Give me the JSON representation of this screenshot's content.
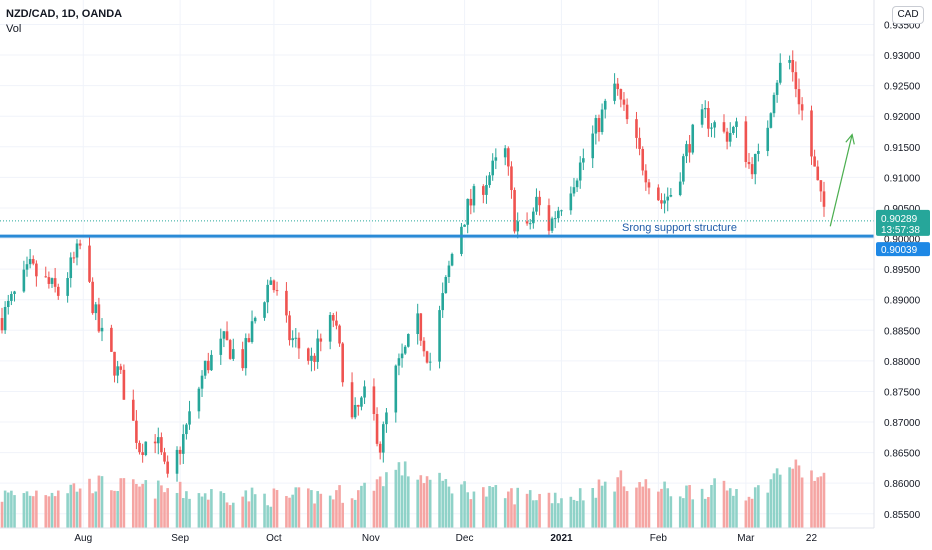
{
  "legend": {
    "symbol": "NZD/CAD, 1D, OANDA",
    "volume": "Vol"
  },
  "currency_badge": "CAD",
  "colors": {
    "up": "#26a69a",
    "down": "#ef5350",
    "vol_up": "#8fd2c8",
    "vol_down": "#f5a5a3",
    "support": "#2a8ad6",
    "arrow": "#4caf50",
    "price_tag": "#26a69a",
    "support_tag": "#1e88e5"
  },
  "chart_data": {
    "type": "candlestick",
    "title": "NZD/CAD, 1D, OANDA",
    "ylim": [
      0.853,
      0.939
    ],
    "y_ticks": [
      "0.93500",
      "0.93000",
      "0.92500",
      "0.92000",
      "0.91500",
      "0.91000",
      "0.90500",
      "0.90000",
      "0.89500",
      "0.89000",
      "0.88500",
      "0.88000",
      "0.87500",
      "0.87000",
      "0.86500",
      "0.86000",
      "0.85500"
    ],
    "x_ticks": [
      "Aug",
      "Sep",
      "Oct",
      "Nov",
      "Dec",
      "2021",
      "Feb",
      "Mar",
      "22"
    ],
    "x_tick_dates": [
      "2020-08-01",
      "2020-09-01",
      "2020-10-01",
      "2020-11-01",
      "2020-12-01",
      "2021-01-01",
      "2021-02-01",
      "2021-03-01",
      "2021-03-22"
    ],
    "date_range": [
      "2020-07-06",
      "2021-03-26"
    ],
    "last_price": {
      "value": "0.90289",
      "countdown": "13:57:38"
    },
    "support": {
      "value": 0.90039,
      "label": "0.90039"
    },
    "annotation": "Srong support structure",
    "close_path": [
      [
        "2020-07-06",
        0.887
      ],
      [
        "2020-07-15",
        0.895
      ],
      [
        "2020-07-24",
        0.891
      ],
      [
        "2020-07-31",
        0.8985
      ],
      [
        "2020-08-06",
        0.885
      ],
      [
        "2020-08-13",
        0.877
      ],
      [
        "2020-08-19",
        0.866
      ],
      [
        "2020-08-24",
        0.868
      ],
      [
        "2020-08-28",
        0.86
      ],
      [
        "2020-09-03",
        0.869
      ],
      [
        "2020-09-09",
        0.879
      ],
      [
        "2020-09-15",
        0.883
      ],
      [
        "2020-09-21",
        0.88
      ],
      [
        "2020-09-25",
        0.887
      ],
      [
        "2020-09-30",
        0.8935
      ],
      [
        "2020-10-06",
        0.884
      ],
      [
        "2020-10-13",
        0.88
      ],
      [
        "2020-10-20",
        0.887
      ],
      [
        "2020-10-26",
        0.87
      ],
      [
        "2020-10-31",
        0.875
      ],
      [
        "2020-11-04",
        0.866
      ],
      [
        "2020-11-09",
        0.878
      ],
      [
        "2020-11-16",
        0.886
      ],
      [
        "2020-11-20",
        0.88
      ],
      [
        "2020-11-24",
        0.89
      ],
      [
        "2020-11-28",
        0.9
      ],
      [
        "2020-12-02",
        0.905
      ],
      [
        "2020-12-07",
        0.909
      ],
      [
        "2020-12-11",
        0.912
      ],
      [
        "2020-12-14",
        0.914
      ],
      [
        "2020-12-17",
        0.903
      ],
      [
        "2020-12-21",
        0.901
      ],
      [
        "2020-12-24",
        0.906
      ],
      [
        "2020-12-28",
        0.902
      ],
      [
        "2021-01-01",
        0.906
      ],
      [
        "2021-01-07",
        0.912
      ],
      [
        "2021-01-13",
        0.919
      ],
      [
        "2021-01-18",
        0.925
      ],
      [
        "2021-01-22",
        0.919
      ],
      [
        "2021-01-28",
        0.911
      ],
      [
        "2021-02-02",
        0.906
      ],
      [
        "2021-02-06",
        0.908
      ],
      [
        "2021-02-11",
        0.916
      ],
      [
        "2021-02-16",
        0.92
      ],
      [
        "2021-02-22",
        0.917
      ],
      [
        "2021-02-27",
        0.918
      ],
      [
        "2021-03-02",
        0.912
      ],
      [
        "2021-03-06",
        0.913
      ],
      [
        "2021-03-10",
        0.925
      ],
      [
        "2021-03-14",
        0.931
      ],
      [
        "2021-03-18",
        0.923
      ],
      [
        "2021-03-21",
        0.916
      ],
      [
        "2021-03-25",
        0.906
      ],
      [
        "2021-03-28",
        0.903
      ]
    ],
    "volume_profile": [
      [
        "2020-07-06",
        0.4
      ],
      [
        "2020-08-06",
        0.55
      ],
      [
        "2020-09-10",
        0.42
      ],
      [
        "2020-10-06",
        0.38
      ],
      [
        "2020-10-28",
        0.45
      ],
      [
        "2020-11-10",
        0.75
      ],
      [
        "2020-11-20",
        0.6
      ],
      [
        "2020-12-10",
        0.42
      ],
      [
        "2021-01-05",
        0.4
      ],
      [
        "2021-01-20",
        0.6
      ],
      [
        "2021-02-05",
        0.45
      ],
      [
        "2021-02-20",
        0.5
      ],
      [
        "2021-03-05",
        0.45
      ],
      [
        "2021-03-14",
        0.8
      ],
      [
        "2021-03-28",
        0.55
      ]
    ],
    "arrow": {
      "from": [
        "2021-03-28",
        0.902
      ],
      "to": [
        "2021-04-04",
        0.917
      ]
    },
    "grid": true
  }
}
